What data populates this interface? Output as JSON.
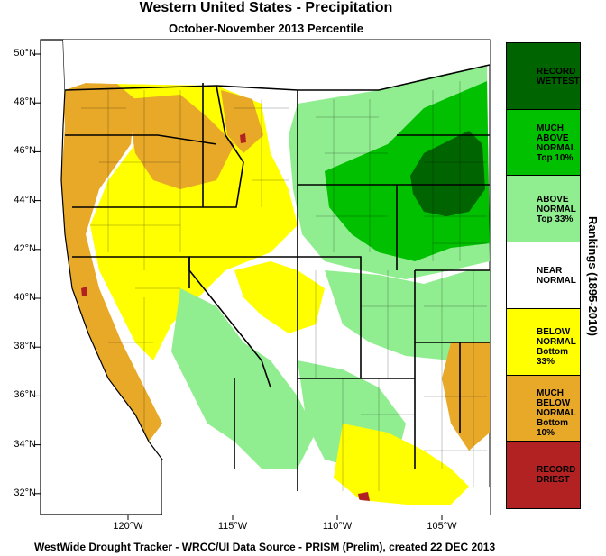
{
  "title": "Western United States - Precipitation",
  "subtitle": "October-November 2013 Percentile",
  "credit": "WestWide Drought Tracker - WRCC/UI  Data Source - PRISM (Prelim), created 22 DEC 2013",
  "side_label": "Rankings (1895-2010)",
  "lat_ticks": [
    "50°N",
    "48°N",
    "46°N",
    "44°N",
    "42°N",
    "40°N",
    "38°N",
    "36°N",
    "34°N",
    "32°N"
  ],
  "lon_ticks": [
    "120°W",
    "115°W",
    "110°W",
    "105°W"
  ],
  "legend": [
    {
      "label": "RECORD\nWETTEST",
      "color": "#006400"
    },
    {
      "label": "MUCH\nABOVE\nNORMAL\nTop 10%",
      "color": "#00c000"
    },
    {
      "label": "ABOVE\nNORMAL\nTop 33%",
      "color": "#90ee90"
    },
    {
      "label": "NEAR\nNORMAL",
      "color": "#ffffff"
    },
    {
      "label": "BELOW\nNORMAL\nBottom 33%",
      "color": "#ffff00"
    },
    {
      "label": "MUCH\nBELOW\nNORMAL\nBottom 10%",
      "color": "#e8a828"
    },
    {
      "label": "RECORD\nDRIEST",
      "color": "#b22222"
    }
  ]
}
